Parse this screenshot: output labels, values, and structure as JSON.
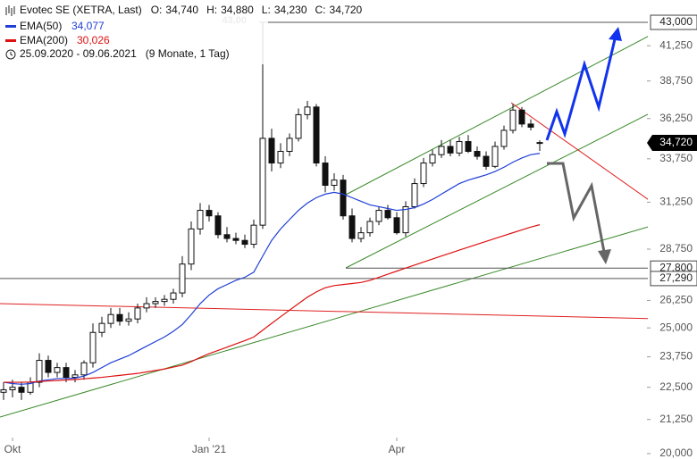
{
  "chart_data": {
    "type": "candlestick",
    "title": "Evotec SE (XETRA, Last)",
    "ohlc_text": [
      {
        "name": "O:",
        "value": 34740,
        "label": "34,740"
      },
      {
        "name": "H:",
        "value": 34880,
        "label": "34,880"
      },
      {
        "name": "L:",
        "value": 34230,
        "label": "34,230"
      },
      {
        "name": "C:",
        "value": 34720,
        "label": "34,720"
      }
    ],
    "period": "25.09.2020 - 09.06.2021",
    "period_note": "(9 Monate, 1 Tag)",
    "log_scale": true,
    "categories": [
      null,
      "Okt",
      null,
      null,
      null,
      null,
      null,
      null,
      null,
      null,
      null,
      null,
      null,
      null,
      null,
      null,
      null,
      null,
      null,
      null,
      null,
      null,
      null,
      "Jan '21",
      null,
      null,
      null,
      null,
      null,
      null,
      null,
      null,
      null,
      null,
      null,
      null,
      null,
      null,
      null,
      null,
      null,
      null,
      null,
      null,
      "Apr",
      null,
      null,
      null,
      null,
      null,
      null,
      null,
      null,
      null,
      null,
      null,
      null,
      null,
      null,
      null,
      null
    ],
    "candles": {
      "color": "#111111",
      "open": [
        22300,
        22400,
        22500,
        22300,
        22700,
        23600,
        23100,
        23300,
        22900,
        23000,
        23500,
        24800,
        25200,
        25600,
        25300,
        25400,
        25900,
        26100,
        26200,
        26300,
        26600,
        28000,
        29800,
        30800,
        30500,
        29500,
        29300,
        29200,
        29000,
        30000,
        35000,
        33500,
        34200,
        35000,
        36500,
        37000,
        33500,
        32200,
        32500,
        30500,
        29300,
        29600,
        30200,
        30800,
        30400,
        29600,
        31000,
        32300,
        33500,
        34000,
        34500,
        34100,
        34800,
        34200,
        33900,
        33300,
        34500,
        35500,
        36800,
        35900,
        34740
      ],
      "high": [
        22700,
        22800,
        22700,
        22900,
        23900,
        23800,
        23500,
        23500,
        23200,
        23600,
        25200,
        25500,
        25900,
        25900,
        25700,
        26100,
        26400,
        26400,
        26500,
        26800,
        28400,
        30200,
        31200,
        31100,
        30700,
        29900,
        29600,
        29500,
        30300,
        43000,
        35600,
        34700,
        35300,
        36900,
        37400,
        37200,
        33900,
        32900,
        32800,
        30900,
        29900,
        30400,
        31000,
        31100,
        30700,
        31300,
        32600,
        33800,
        34300,
        34900,
        34900,
        35100,
        35200,
        34500,
        34200,
        34800,
        35800,
        37200,
        37000,
        36200,
        34880
      ],
      "low": [
        22000,
        22100,
        22000,
        22200,
        22500,
        22900,
        22900,
        22700,
        22700,
        22800,
        23300,
        24600,
        25000,
        25100,
        25100,
        25200,
        25700,
        25900,
        26000,
        26100,
        26400,
        27700,
        29500,
        30200,
        29300,
        29100,
        29000,
        28800,
        28800,
        29800,
        33000,
        33200,
        33900,
        34800,
        36200,
        33300,
        31800,
        31900,
        30300,
        29100,
        29100,
        29400,
        30000,
        30300,
        29500,
        29400,
        30900,
        32100,
        33300,
        33800,
        33900,
        33900,
        34100,
        33700,
        33100,
        33200,
        34300,
        35300,
        35700,
        35500,
        34230
      ],
      "close": [
        22400,
        22500,
        22300,
        22700,
        23600,
        23100,
        23300,
        22900,
        23000,
        23500,
        24800,
        25200,
        25600,
        25300,
        25400,
        25900,
        26100,
        26200,
        26300,
        26600,
        28000,
        29800,
        30800,
        30500,
        29500,
        29300,
        29200,
        29000,
        30000,
        35000,
        33500,
        34200,
        35000,
        36500,
        37000,
        33500,
        32200,
        32500,
        30500,
        29300,
        29600,
        30200,
        30800,
        30400,
        29600,
        31000,
        32300,
        33500,
        34000,
        34500,
        34100,
        34800,
        34200,
        33900,
        33300,
        34500,
        35500,
        36800,
        35900,
        35700,
        34720
      ]
    },
    "series": [
      {
        "name": "EMA(50)",
        "color": "#1f3fd6",
        "last_label": "34,077",
        "values": [
          22700,
          22650,
          22620,
          22650,
          22750,
          22800,
          22850,
          22850,
          22870,
          22950,
          23100,
          23300,
          23500,
          23650,
          23800,
          24000,
          24200,
          24400,
          24600,
          24850,
          25150,
          25600,
          26100,
          26500,
          26800,
          27000,
          27200,
          27350,
          27600,
          28400,
          29200,
          29800,
          30300,
          30800,
          31200,
          31500,
          31700,
          31800,
          31700,
          31500,
          31300,
          31100,
          31000,
          30900,
          30800,
          30850,
          30950,
          31150,
          31400,
          31700,
          32000,
          32300,
          32500,
          32650,
          32800,
          33000,
          33250,
          33550,
          33800,
          34000,
          34077
        ]
      },
      {
        "name": "EMA(200)",
        "color": "#dd1111",
        "last_label": "30,026",
        "values": [
          22700,
          22700,
          22700,
          22710,
          22730,
          22750,
          22770,
          22790,
          22810,
          22840,
          22870,
          22900,
          22940,
          22980,
          23020,
          23060,
          23120,
          23180,
          23240,
          23320,
          23400,
          23550,
          23720,
          23880,
          24020,
          24160,
          24300,
          24440,
          24600,
          24900,
          25200,
          25500,
          25800,
          26100,
          26400,
          26650,
          26850,
          26950,
          27000,
          27050,
          27100,
          27200,
          27350,
          27500,
          27650,
          27800,
          27950,
          28100,
          28250,
          28400,
          28550,
          28700,
          28850,
          29000,
          29150,
          29300,
          29450,
          29600,
          29750,
          29900,
          30026
        ]
      }
    ],
    "ylim": [
      19810,
      44740
    ],
    "yticks": [
      {
        "value": 20000,
        "label": "20,000"
      },
      {
        "value": 21250,
        "label": "21,250"
      },
      {
        "value": 22500,
        "label": "22,500"
      },
      {
        "value": 23750,
        "label": "23,750"
      },
      {
        "value": 25000,
        "label": "25,000"
      },
      {
        "value": 26250,
        "label": "26,250"
      },
      {
        "value": 28750,
        "label": "28,750"
      },
      {
        "value": 31250,
        "label": "31,250"
      },
      {
        "value": 33750,
        "label": "33,750"
      },
      {
        "value": 36250,
        "label": "36,250"
      },
      {
        "value": 38750,
        "label": "38,750"
      },
      {
        "value": 41250,
        "label": "41,250"
      }
    ],
    "levels": [
      {
        "value": 43000,
        "label": "43,000",
        "style": "white"
      },
      {
        "value": 27800,
        "label": "27,800",
        "style": "white"
      },
      {
        "value": 27290,
        "label": "27,290",
        "style": "white"
      },
      {
        "value": 34720,
        "label": "34,720",
        "style": "black"
      }
    ],
    "peak_label": "43,00"
  }
}
